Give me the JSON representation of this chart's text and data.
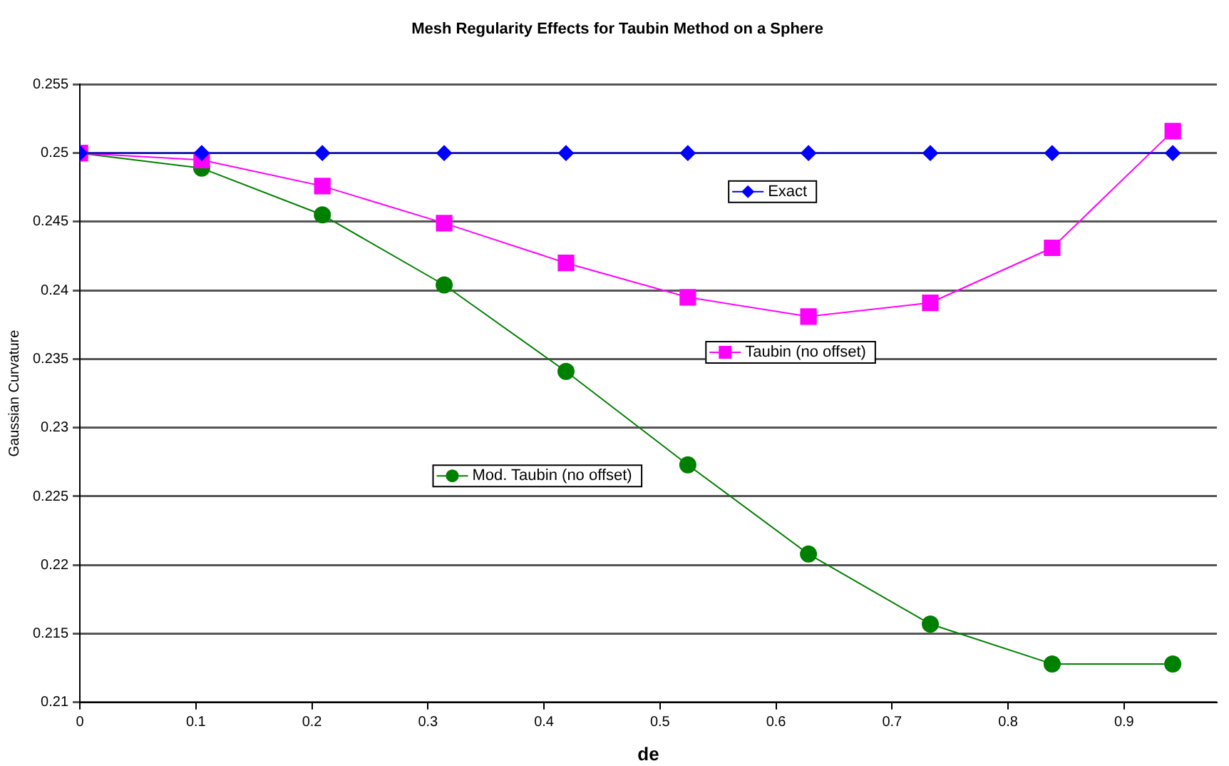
{
  "chart_data": {
    "type": "line",
    "title": "Mesh Regularity Effects for Taubin Method on a Sphere",
    "xlabel": "de",
    "ylabel": "Gaussian Curvature",
    "x": [
      0,
      0.105,
      0.209,
      0.314,
      0.419,
      0.524,
      0.628,
      0.733,
      0.838,
      0.942
    ],
    "series": [
      {
        "name": "Exact",
        "color": "#0000ff",
        "marker": "diamond",
        "values": [
          0.25,
          0.25,
          0.25,
          0.25,
          0.25,
          0.25,
          0.25,
          0.25,
          0.25,
          0.25
        ]
      },
      {
        "name": "Taubin (no offset)",
        "color": "#ff00ff",
        "marker": "square",
        "values": [
          0.25,
          0.2495,
          0.2476,
          0.2449,
          0.242,
          0.2395,
          0.2381,
          0.2391,
          0.2431,
          0.2516
        ]
      },
      {
        "name": "Mod. Taubin (no offset)",
        "color": "#008000",
        "marker": "circle",
        "values": [
          0.25,
          0.2489,
          0.2455,
          0.2404,
          0.2341,
          0.2273,
          0.2208,
          0.2157,
          0.2128,
          0.2128
        ]
      }
    ],
    "xlim": [
      0,
      0.98
    ],
    "xticks": [
      0,
      0.1,
      0.2,
      0.3,
      0.4,
      0.5,
      0.6,
      0.7,
      0.8,
      0.9
    ],
    "ylim": [
      0.21,
      0.255
    ],
    "yticks": [
      0.21,
      0.215,
      0.22,
      0.225,
      0.23,
      0.235,
      0.24,
      0.245,
      0.25,
      0.255
    ],
    "grid": "y",
    "legend": "right",
    "line_style": "solid"
  }
}
